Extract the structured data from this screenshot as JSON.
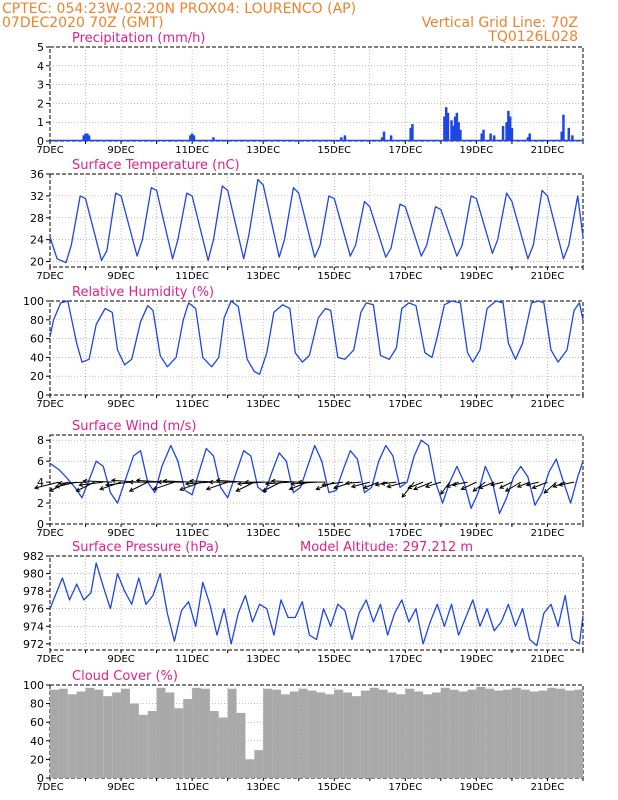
{
  "header": {
    "line1": "CPTEC:   054:23W-02:20N   PROX04: LOURENCO (AP)",
    "line2_left": "07DEC2020 70Z (GMT)",
    "line2_right": "Vertical Grid Line: 70Z",
    "line3_right": "TQ0126L028"
  },
  "x_ticks": [
    "7DEC",
    "9DEC",
    "11DEC",
    "13DEC",
    "15DEC",
    "17DEC",
    "19DEC",
    "21DEC"
  ],
  "colors": {
    "series": "#1e46e6",
    "cloud": "#a9a9a9",
    "arrow": "#000000",
    "title": "#e0208c",
    "header": "#f0822c"
  },
  "chart_data": [
    {
      "type": "bar",
      "title": "Precipitation (mm/h)",
      "x_range_days": [
        0,
        15
      ],
      "ylim": [
        0,
        5
      ],
      "yticks": [
        0,
        1,
        2,
        3,
        4,
        5
      ],
      "series": [
        {
          "x_days": [
            0.95,
            1.0,
            1.05,
            1.1,
            3.95,
            4.0,
            4.05,
            4.6,
            8.2,
            8.3,
            9.35,
            9.4,
            9.6,
            10.15,
            10.2,
            11.1,
            11.15,
            11.2,
            11.3,
            11.35,
            11.4,
            11.45,
            11.5,
            11.55,
            12.15,
            12.2,
            12.4,
            12.5,
            12.75,
            12.85,
            12.9,
            12.95,
            13.0,
            13.45,
            13.5,
            14.4,
            14.45,
            14.6,
            14.7
          ],
          "values": [
            0.3,
            0.4,
            0.4,
            0.3,
            0.3,
            0.4,
            0.3,
            0.2,
            0.2,
            0.3,
            0.2,
            0.5,
            0.3,
            0.7,
            0.9,
            1.3,
            1.8,
            1.5,
            1.1,
            0.8,
            1.3,
            1.5,
            1.0,
            0.6,
            0.4,
            0.6,
            0.4,
            0.3,
            0.8,
            1.0,
            1.6,
            1.3,
            0.7,
            0.2,
            0.4,
            0.5,
            1.4,
            0.7,
            0.3
          ]
        }
      ]
    },
    {
      "type": "line",
      "title": "Surface Temperature (nC)",
      "x_range_days": [
        0,
        15
      ],
      "ylim": [
        19,
        36
      ],
      "yticks": [
        20,
        24,
        28,
        32,
        36
      ],
      "series": [
        {
          "x_days": [
            0,
            0.2,
            0.45,
            0.6,
            0.85,
            1.0,
            1.45,
            1.6,
            1.85,
            2.0,
            2.45,
            2.6,
            2.85,
            3.0,
            3.45,
            3.6,
            3.85,
            4.0,
            4.45,
            4.6,
            4.85,
            5.0,
            5.45,
            5.6,
            5.85,
            6.0,
            6.45,
            6.6,
            6.85,
            7.0,
            7.45,
            7.6,
            7.85,
            8.0,
            8.45,
            8.6,
            8.85,
            9.0,
            9.45,
            9.6,
            9.85,
            10.0,
            10.45,
            10.6,
            10.85,
            11.0,
            11.45,
            11.6,
            11.85,
            12.0,
            12.45,
            12.6,
            12.85,
            13.0,
            13.45,
            13.6,
            13.85,
            14.0,
            14.45,
            14.6,
            14.85,
            15.0
          ],
          "values": [
            24.5,
            20.5,
            19.8,
            23,
            32,
            31.5,
            20.2,
            22,
            32.5,
            32,
            21,
            24,
            33.5,
            33,
            20.5,
            24,
            32.5,
            32,
            20.2,
            24,
            33.8,
            33,
            20.5,
            25,
            35,
            34,
            20.8,
            24,
            33.5,
            32.5,
            20.8,
            23,
            32,
            31.5,
            21,
            23,
            31,
            30,
            20.8,
            22.5,
            30.5,
            30,
            21,
            23,
            30,
            29.5,
            21,
            23,
            32,
            31.5,
            21.5,
            24,
            32.5,
            31,
            20.5,
            23,
            33,
            32,
            20.5,
            23,
            32,
            24.5
          ]
        }
      ]
    },
    {
      "type": "line",
      "title": "Relative Humidity (%)",
      "x_range_days": [
        0,
        15
      ],
      "ylim": [
        0,
        100
      ],
      "yticks": [
        0,
        20,
        40,
        60,
        80,
        100
      ],
      "series": [
        {
          "x_days": [
            0,
            0.1,
            0.3,
            0.5,
            0.75,
            0.9,
            1.1,
            1.3,
            1.55,
            1.75,
            1.9,
            2.1,
            2.3,
            2.55,
            2.75,
            2.9,
            3.1,
            3.3,
            3.55,
            3.75,
            3.9,
            4.1,
            4.3,
            4.55,
            4.75,
            4.9,
            5.1,
            5.3,
            5.55,
            5.75,
            5.9,
            6.1,
            6.3,
            6.55,
            6.75,
            6.9,
            7.1,
            7.3,
            7.55,
            7.75,
            7.9,
            8.1,
            8.3,
            8.55,
            8.75,
            8.9,
            9.1,
            9.3,
            9.55,
            9.75,
            9.9,
            10.1,
            10.3,
            10.55,
            10.75,
            10.9,
            11.1,
            11.3,
            11.55,
            11.75,
            11.9,
            12.1,
            12.3,
            12.55,
            12.75,
            12.9,
            13.1,
            13.3,
            13.55,
            13.75,
            13.9,
            14.1,
            14.3,
            14.55,
            14.75,
            14.9,
            15.0
          ],
          "values": [
            62,
            80,
            98,
            100,
            55,
            35,
            38,
            75,
            92,
            88,
            48,
            32,
            38,
            78,
            95,
            90,
            42,
            30,
            40,
            80,
            98,
            92,
            40,
            30,
            40,
            82,
            100,
            94,
            38,
            25,
            22,
            45,
            88,
            96,
            92,
            45,
            35,
            42,
            82,
            92,
            90,
            40,
            38,
            48,
            88,
            98,
            96,
            42,
            38,
            50,
            92,
            98,
            95,
            45,
            40,
            62,
            96,
            100,
            98,
            45,
            35,
            48,
            92,
            100,
            98,
            55,
            38,
            55,
            98,
            100,
            98,
            48,
            35,
            48,
            90,
            98,
            80
          ]
        }
      ]
    },
    {
      "type": "line",
      "title": "Surface Wind (m/s)",
      "x_range_days": [
        0,
        15
      ],
      "ylim": [
        0,
        8.5
      ],
      "yticks": [
        0,
        2,
        4,
        6,
        8
      ],
      "series": [
        {
          "x_days": [
            0,
            0.25,
            0.45,
            0.7,
            0.9,
            1.1,
            1.3,
            1.5,
            1.7,
            1.9,
            2.1,
            2.35,
            2.55,
            2.75,
            2.95,
            3.15,
            3.4,
            3.6,
            3.8,
            4.0,
            4.2,
            4.4,
            4.6,
            4.8,
            5.0,
            5.2,
            5.45,
            5.65,
            5.85,
            6.05,
            6.25,
            6.45,
            6.65,
            6.85,
            7.05,
            7.25,
            7.45,
            7.65,
            7.85,
            8.05,
            8.25,
            8.45,
            8.65,
            8.85,
            9.05,
            9.25,
            9.45,
            9.65,
            9.85,
            10.05,
            10.25,
            10.45,
            10.65,
            10.85,
            11.05,
            11.25,
            11.45,
            11.65,
            11.85,
            12.05,
            12.25,
            12.45,
            12.65,
            12.85,
            13.05,
            13.25,
            13.45,
            13.65,
            13.85,
            14.05,
            14.25,
            14.45,
            14.65,
            14.85,
            15.0
          ],
          "values": [
            5.8,
            5.2,
            4.5,
            3.5,
            2.5,
            4.2,
            6.0,
            5.5,
            3.0,
            2.0,
            4.0,
            6.5,
            7.0,
            4.0,
            3.0,
            5.5,
            7.5,
            6.0,
            3.2,
            2.8,
            5.0,
            7.2,
            6.5,
            3.5,
            2.5,
            4.5,
            7.0,
            6.5,
            3.5,
            3.0,
            5.0,
            6.8,
            6.0,
            3.0,
            3.5,
            5.5,
            7.5,
            6.0,
            3.0,
            3.2,
            5.2,
            7.0,
            6.2,
            3.0,
            3.5,
            6.0,
            7.5,
            6.5,
            3.5,
            4.0,
            6.5,
            8.0,
            7.5,
            4.0,
            2.0,
            4.0,
            5.5,
            4.0,
            1.5,
            3.0,
            5.5,
            4.0,
            1.0,
            2.5,
            4.5,
            5.5,
            4.5,
            1.8,
            3.0,
            5.0,
            6.2,
            4.0,
            2.0,
            4.5,
            6.0
          ]
        }
      ],
      "wind_vectors": {
        "x_days": [
          0.25,
          0.5,
          0.75,
          1.0,
          1.25,
          1.5,
          1.75,
          2.0,
          2.25,
          2.5,
          2.75,
          3.0,
          3.25,
          3.5,
          3.75,
          4.0,
          4.25,
          4.5,
          4.75,
          5.0,
          5.25,
          5.5,
          5.75,
          6.0,
          6.25,
          6.5,
          6.75,
          7.0,
          7.25,
          7.5,
          7.75,
          8.0,
          8.25,
          8.5,
          8.75,
          9.0,
          9.25,
          9.5,
          9.75,
          10.0,
          10.25,
          10.5,
          10.75,
          11.0,
          11.25,
          11.5,
          11.75,
          12.0,
          12.25,
          12.5,
          12.75,
          13.0,
          13.25,
          13.5,
          13.75,
          14.0,
          14.25,
          14.5,
          14.75
        ],
        "u": [
          -4.0,
          -3.0,
          -3.5,
          -4.5,
          -3.0,
          -4.0,
          -4.8,
          -3.5,
          -4.0,
          -4.5,
          -3.0,
          -4.5,
          -4.8,
          -3.5,
          -4.2,
          -4.8,
          -3.5,
          -4.0,
          -4.8,
          -3.5,
          -4.5,
          -4.8,
          -3.0,
          -4.2,
          -4.5,
          -3.0,
          -4.0,
          -4.5,
          -3.0,
          -4.2,
          -4.5,
          -3.0,
          -3.5,
          -3.0,
          -2.5,
          -3.0,
          -2.5,
          -2.0,
          -2.5,
          -3.0,
          -2.0,
          -2.5,
          -3.0,
          -2.5,
          -1.5,
          -2.0,
          -2.5,
          -2.5,
          -2.0,
          -2.5,
          -2.0,
          -2.0,
          -2.5,
          -2.0,
          -2.0,
          -2.5,
          -2.0,
          -2.0,
          -2.5
        ],
        "v": [
          -1.0,
          -1.5,
          -0.8,
          -0.2,
          -1.5,
          -0.5,
          0.2,
          -1.2,
          -0.5,
          0.3,
          -1.5,
          0.0,
          0.3,
          -1.2,
          0.0,
          0.2,
          -1.3,
          -0.3,
          0.2,
          -1.2,
          0.0,
          0.3,
          -1.5,
          -0.3,
          0.0,
          -1.5,
          -0.3,
          0.2,
          -1.2,
          -0.3,
          0.0,
          -1.2,
          -0.5,
          -1.0,
          -0.2,
          -0.8,
          -1.0,
          -0.5,
          -0.3,
          -0.8,
          -2.5,
          -1.0,
          -1.2,
          -0.8,
          -2.0,
          -0.8,
          -0.5,
          -1.2,
          -1.5,
          -1.0,
          -0.5,
          -1.0,
          -1.5,
          -0.8,
          -0.5,
          -1.0,
          -1.8,
          -0.8,
          -0.5
        ]
      }
    },
    {
      "type": "line",
      "title": "Surface Pressure (hPa)",
      "annotation": "Model Altitude: 297.212  m",
      "x_range_days": [
        0,
        15
      ],
      "ylim": [
        971.3,
        982
      ],
      "yticks": [
        972,
        974,
        976,
        978,
        980,
        982
      ],
      "series": [
        {
          "x_days": [
            0,
            0.15,
            0.35,
            0.55,
            0.75,
            0.95,
            1.15,
            1.3,
            1.5,
            1.7,
            1.9,
            2.1,
            2.3,
            2.5,
            2.7,
            2.9,
            3.1,
            3.3,
            3.5,
            3.7,
            3.9,
            4.1,
            4.3,
            4.5,
            4.7,
            4.9,
            5.1,
            5.3,
            5.5,
            5.7,
            5.9,
            6.1,
            6.3,
            6.5,
            6.7,
            6.9,
            7.1,
            7.3,
            7.5,
            7.7,
            7.9,
            8.1,
            8.3,
            8.5,
            8.7,
            8.9,
            9.1,
            9.3,
            9.5,
            9.7,
            9.9,
            10.1,
            10.3,
            10.5,
            10.7,
            10.9,
            11.1,
            11.3,
            11.5,
            11.7,
            11.9,
            12.1,
            12.3,
            12.5,
            12.7,
            12.9,
            13.1,
            13.3,
            13.5,
            13.7,
            13.9,
            14.1,
            14.3,
            14.5,
            14.7,
            14.9,
            15.0
          ],
          "values": [
            976,
            977.5,
            979.5,
            977,
            978.8,
            977,
            977.8,
            981.2,
            978.5,
            976,
            980,
            978,
            976.5,
            979.5,
            976.5,
            977.5,
            980,
            975.5,
            972.3,
            975.8,
            976.8,
            974,
            979,
            976.5,
            973,
            976,
            972,
            975.5,
            977.5,
            974.5,
            976.5,
            976,
            973,
            977,
            975,
            975,
            976.8,
            973,
            972.5,
            976,
            974,
            976.5,
            975.8,
            972.5,
            975.5,
            977,
            974.5,
            976.5,
            973,
            975.5,
            977,
            974.5,
            976,
            972,
            974.5,
            976.5,
            974,
            976.5,
            973,
            975,
            977,
            974,
            976,
            973.5,
            974.5,
            976.5,
            974,
            976,
            972.5,
            971.8,
            975.5,
            976.5,
            974,
            977.5,
            972.5,
            972,
            975.2
          ]
        }
      ]
    },
    {
      "type": "bar",
      "title": "Cloud Cover (%)",
      "x_range_days": [
        0,
        15
      ],
      "ylim": [
        0,
        100
      ],
      "yticks": [
        0,
        20,
        40,
        60,
        80,
        100
      ],
      "series": [
        {
          "x_days": [
            0.0,
            0.25,
            0.5,
            0.75,
            1.0,
            1.25,
            1.5,
            1.75,
            2.0,
            2.25,
            2.5,
            2.75,
            3.0,
            3.25,
            3.5,
            3.75,
            4.0,
            4.25,
            4.5,
            4.75,
            5.0,
            5.25,
            5.5,
            5.75,
            6.0,
            6.25,
            6.5,
            6.75,
            7.0,
            7.25,
            7.5,
            7.75,
            8.0,
            8.25,
            8.5,
            8.75,
            9.0,
            9.25,
            9.5,
            9.75,
            10.0,
            10.25,
            10.5,
            10.75,
            11.0,
            11.25,
            11.5,
            11.75,
            12.0,
            12.25,
            12.5,
            12.75,
            13.0,
            13.25,
            13.5,
            13.75,
            14.0,
            14.25,
            14.5,
            14.75
          ],
          "values": [
            95,
            96,
            90,
            93,
            97,
            95,
            88,
            92,
            96,
            80,
            68,
            72,
            97,
            92,
            75,
            85,
            97,
            96,
            72,
            65,
            96,
            70,
            20,
            30,
            96,
            95,
            90,
            93,
            96,
            94,
            92,
            90,
            95,
            92,
            88,
            94,
            97,
            95,
            92,
            90,
            96,
            93,
            90,
            92,
            97,
            95,
            93,
            95,
            98,
            96,
            94,
            95,
            97,
            95,
            93,
            94,
            97,
            96,
            94,
            95
          ]
        }
      ]
    }
  ]
}
